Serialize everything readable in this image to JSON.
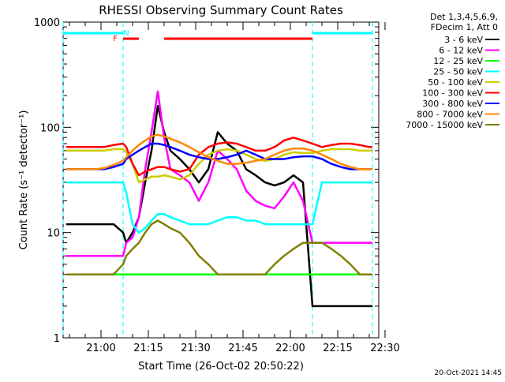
{
  "chart_data": {
    "type": "line",
    "title": "RHESSI Observing Summary Count Rates",
    "xlabel": "Start Time (26-Oct-02 20:50:22)",
    "ylabel": "Count Rate (s⁻¹ detector⁻¹)",
    "yscale": "log",
    "ylim": [
      1,
      1000
    ],
    "xlim_minutes": [
      -2,
      98
    ],
    "x_tick_labels": [
      "21:00",
      "21:15",
      "21:30",
      "21:45",
      "22:00",
      "22:15",
      "22:30"
    ],
    "x_tick_minutes": [
      10,
      25,
      40,
      55,
      70,
      85,
      100
    ],
    "y_tick_labels": [
      "1",
      "10",
      "100",
      "1000"
    ],
    "y_tick_values": [
      1,
      10,
      100,
      1000
    ],
    "legend_header": [
      "Det 1,3,4,5,6,9,",
      "FDecim 1, Att 0"
    ],
    "legend_placement": "right",
    "annotations": {
      "flag_F": "F",
      "flag_N": "N",
      "footer_date": "20-Oct-2021 14:45"
    },
    "flag_segments": {
      "cyan_night": [
        [
          -2,
          17
        ],
        [
          77,
          96
        ]
      ],
      "red_flare": [
        [
          17,
          22
        ],
        [
          30,
          77
        ]
      ]
    },
    "x": [
      -1,
      2,
      5,
      8,
      11,
      14,
      17,
      18,
      20,
      22,
      24,
      26,
      28,
      30,
      32,
      35,
      38,
      41,
      44,
      47,
      50,
      53,
      56,
      59,
      62,
      65,
      68,
      71,
      74,
      77,
      80,
      83,
      86,
      89,
      92,
      95,
      96
    ],
    "series": [
      {
        "name": "3 - 6 keV",
        "color": "#000000",
        "values": [
          12,
          12,
          12,
          12,
          12,
          12,
          10,
          8,
          10,
          14,
          30,
          60,
          160,
          90,
          60,
          50,
          40,
          30,
          40,
          90,
          70,
          60,
          40,
          35,
          30,
          28,
          30,
          35,
          30,
          2,
          2,
          2,
          2,
          2,
          2,
          2,
          2
        ]
      },
      {
        "name": "6 - 12 keV",
        "color": "#ff00ff",
        "values": [
          6,
          6,
          6,
          6,
          6,
          6,
          6,
          8,
          9,
          14,
          40,
          90,
          220,
          80,
          40,
          35,
          30,
          20,
          30,
          60,
          50,
          40,
          25,
          20,
          18,
          17,
          22,
          30,
          20,
          8,
          8,
          8,
          8,
          8,
          8,
          8,
          8
        ]
      },
      {
        "name": "12 - 25 keV",
        "color": "#00ff00",
        "values": [
          4,
          4,
          4,
          4,
          4,
          4,
          4,
          4,
          4,
          4,
          4,
          4,
          4,
          4,
          4,
          4,
          4,
          4,
          4,
          4,
          4,
          4,
          4,
          4,
          4,
          4,
          4,
          4,
          4,
          4,
          4,
          4,
          4,
          4,
          4,
          4,
          4
        ]
      },
      {
        "name": "25 - 50 keV",
        "color": "#00ffff",
        "values": [
          30,
          30,
          30,
          30,
          30,
          30,
          30,
          24,
          12,
          10,
          11,
          13,
          15,
          15,
          14,
          13,
          12,
          12,
          12,
          13,
          14,
          14,
          13,
          13,
          12,
          12,
          12,
          12,
          12,
          12,
          30,
          30,
          30,
          30,
          30,
          30,
          30
        ]
      },
      {
        "name": "50 - 100 keV",
        "color": "#cccc00",
        "values": [
          60,
          60,
          60,
          60,
          60,
          62,
          62,
          58,
          45,
          30,
          32,
          34,
          34,
          35,
          34,
          32,
          35,
          45,
          55,
          60,
          62,
          60,
          55,
          50,
          48,
          50,
          55,
          58,
          57,
          57,
          60,
          62,
          62,
          62,
          60,
          60,
          60
        ]
      },
      {
        "name": "100 - 300 keV",
        "color": "#ff0000",
        "values": [
          65,
          65,
          65,
          65,
          65,
          68,
          70,
          65,
          45,
          35,
          38,
          40,
          42,
          42,
          40,
          38,
          40,
          55,
          65,
          70,
          72,
          70,
          65,
          60,
          60,
          65,
          75,
          80,
          75,
          70,
          65,
          68,
          70,
          70,
          68,
          65,
          65
        ]
      },
      {
        "name": "300 - 800 keV",
        "color": "#0000ff",
        "values": [
          40,
          40,
          40,
          40,
          40,
          42,
          45,
          50,
          55,
          60,
          65,
          70,
          70,
          68,
          65,
          60,
          55,
          52,
          50,
          50,
          52,
          55,
          60,
          55,
          50,
          50,
          50,
          52,
          53,
          53,
          50,
          45,
          42,
          40,
          40,
          40,
          40
        ]
      },
      {
        "name": "800 - 7000 keV",
        "color": "#ff8800",
        "values": [
          40,
          40,
          40,
          40,
          41,
          44,
          48,
          52,
          60,
          68,
          75,
          82,
          85,
          82,
          78,
          72,
          65,
          58,
          52,
          48,
          45,
          45,
          46,
          48,
          50,
          55,
          60,
          63,
          63,
          60,
          55,
          50,
          45,
          42,
          40,
          40,
          40
        ]
      },
      {
        "name": "7000 - 15000 keV",
        "color": "#808000",
        "values": [
          4,
          4,
          4,
          4,
          4,
          4,
          5,
          6,
          7,
          8,
          10,
          12,
          13,
          12,
          11,
          10,
          8,
          6,
          5,
          4,
          4,
          4,
          4,
          4,
          4,
          5,
          6,
          7,
          8,
          8,
          8,
          7,
          6,
          5,
          4,
          4,
          4
        ]
      }
    ]
  }
}
